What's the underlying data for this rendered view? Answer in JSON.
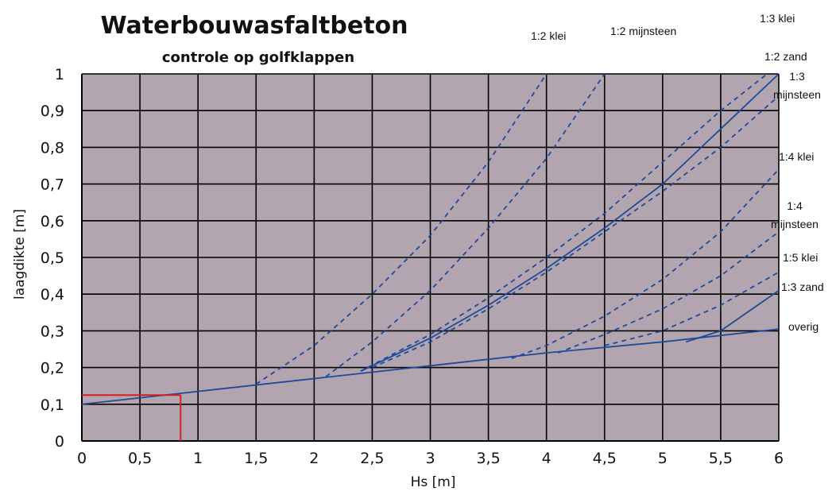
{
  "chart_data": {
    "type": "line",
    "title": "Waterbouwasfaltbeton",
    "subtitle": "controle op golfklappen",
    "xlabel": "Hs [m]",
    "ylabel": "laagdikte [m]",
    "xlim": [
      0,
      6
    ],
    "ylim": [
      0,
      1
    ],
    "x_ticks": [
      "0",
      "0,5",
      "1",
      "1,5",
      "2",
      "2,5",
      "3",
      "3,5",
      "4",
      "4,5",
      "5",
      "5,5",
      "6"
    ],
    "y_ticks": [
      "0",
      "0,1",
      "0,2",
      "0,3",
      "0,4",
      "0,5",
      "0,6",
      "0,7",
      "0,8",
      "0,9",
      "1"
    ],
    "grid": true,
    "plot_background": "#b3a5af",
    "line_color": "#1f4a9a",
    "series": [
      {
        "name": "overig",
        "style": "solid",
        "x": [
          0,
          1,
          2,
          3,
          4,
          5,
          6
        ],
        "y": [
          0.1,
          0.135,
          0.17,
          0.205,
          0.24,
          0.27,
          0.305
        ]
      },
      {
        "name": "1:2 klei",
        "style": "dashed",
        "x": [
          1.5,
          2,
          2.5,
          3,
          3.5,
          4
        ],
        "y": [
          0.155,
          0.26,
          0.4,
          0.56,
          0.76,
          1.0
        ]
      },
      {
        "name": "1:2 mijnsteen",
        "style": "dashed",
        "x": [
          2.1,
          2.5,
          3,
          3.5,
          4,
          4.5
        ],
        "y": [
          0.175,
          0.27,
          0.41,
          0.58,
          0.77,
          1.0
        ]
      },
      {
        "name": "1:3 klei",
        "style": "dashed",
        "x": [
          2.4,
          3,
          3.5,
          4,
          4.5,
          5,
          5.5,
          5.9
        ],
        "y": [
          0.19,
          0.29,
          0.39,
          0.5,
          0.62,
          0.76,
          0.9,
          1.0
        ]
      },
      {
        "name": "1:2 zand",
        "style": "solid",
        "x": [
          2.4,
          3,
          3.5,
          4,
          4.5,
          5,
          5.5,
          6
        ],
        "y": [
          0.19,
          0.28,
          0.37,
          0.47,
          0.58,
          0.7,
          0.85,
          1.0
        ]
      },
      {
        "name": "1:3 mijnsteen",
        "style": "dashed",
        "x": [
          2.5,
          3,
          3.5,
          4,
          4.5,
          5,
          5.5,
          6
        ],
        "y": [
          0.2,
          0.27,
          0.36,
          0.46,
          0.57,
          0.68,
          0.8,
          0.94
        ]
      },
      {
        "name": "1:4 klei",
        "style": "dashed",
        "x": [
          3.7,
          4,
          4.5,
          5,
          5.5,
          6
        ],
        "y": [
          0.225,
          0.26,
          0.34,
          0.44,
          0.57,
          0.74
        ]
      },
      {
        "name": "1:4 mijnsteen",
        "style": "dashed",
        "x": [
          4.1,
          4.5,
          5,
          5.5,
          6
        ],
        "y": [
          0.24,
          0.29,
          0.36,
          0.45,
          0.57
        ]
      },
      {
        "name": "1:5 klei",
        "style": "dashed",
        "x": [
          4.5,
          5,
          5.5,
          6
        ],
        "y": [
          0.26,
          0.3,
          0.37,
          0.46
        ]
      },
      {
        "name": "1:3 zand",
        "style": "solid",
        "x": [
          5.2,
          5.5,
          6
        ],
        "y": [
          0.27,
          0.3,
          0.41
        ]
      }
    ],
    "series_labels": [
      {
        "text": "1:2 klei",
        "series": "1:2 klei"
      },
      {
        "text": "1:2 mijnsteen",
        "series": "1:2 mijnsteen"
      },
      {
        "text": "1:3 klei",
        "series": "1:3 klei"
      },
      {
        "text": "1:2 zand",
        "series": "1:2 zand"
      },
      {
        "text": "1:3",
        "series": "1:3 mijnsteen"
      },
      {
        "text": "mijnsteen",
        "series": "1:3 mijnsteen"
      },
      {
        "text": "1:4 klei",
        "series": "1:4 klei"
      },
      {
        "text": "1:4",
        "series": "1:4 mijnsteen"
      },
      {
        "text": "mijnsteen",
        "series": "1:4 mijnsteen"
      },
      {
        "text": "1:5 klei",
        "series": "1:5 klei"
      },
      {
        "text": "1:3 zand",
        "series": "1:3 zand"
      },
      {
        "text": "overig",
        "series": "overig"
      }
    ],
    "annotation": {
      "type": "reading-guide",
      "color": "#d42020",
      "x": 0.85,
      "y": 0.125
    }
  }
}
